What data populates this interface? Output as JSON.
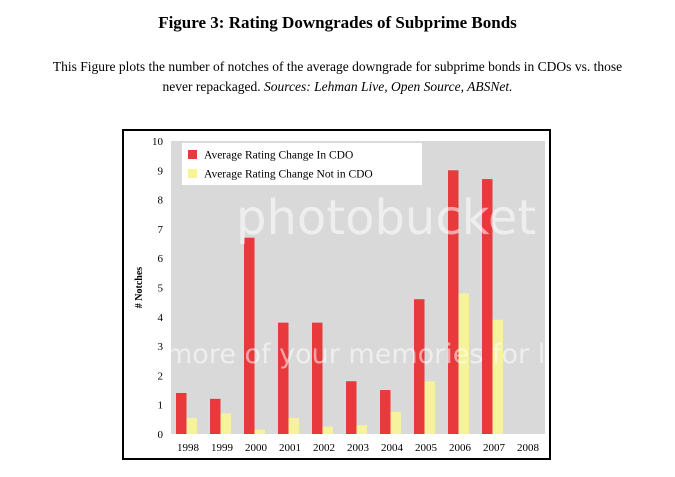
{
  "figure": {
    "title": "Figure 3: Rating Downgrades of Subprime Bonds",
    "caption_line1": "This Figure plots the number of notches of the average downgrade for subprime bonds in CDOs vs. those",
    "caption_line2_plain": "never repackaged. ",
    "caption_line2_sources": "Sources: Lehman Live, Open Source, ABSNet."
  },
  "watermark": {
    "line1": "photobucket",
    "line2": "more of your memories for less!"
  },
  "chart_data": {
    "type": "bar",
    "title": "",
    "xlabel": "",
    "ylabel": "# Notches",
    "ylim": [
      0,
      10
    ],
    "yticks": [
      "0",
      "1",
      "2",
      "3",
      "4",
      "5",
      "6",
      "7",
      "8",
      "9",
      "10"
    ],
    "grid": false,
    "legend_position": "top-left",
    "categories": [
      "1998",
      "1999",
      "2000",
      "2001",
      "2002",
      "2003",
      "2004",
      "2005",
      "2006",
      "2007",
      "2008"
    ],
    "series": [
      {
        "name": "Average Rating Change In CDO",
        "color": "#e8393c",
        "values": [
          1.4,
          1.2,
          6.7,
          3.8,
          3.8,
          1.8,
          1.5,
          4.6,
          9.0,
          8.7,
          0
        ]
      },
      {
        "name": "Average Rating Change Not in CDO",
        "color": "#f7f29e",
        "values": [
          0.55,
          0.7,
          0.15,
          0.55,
          0.25,
          0.3,
          0.75,
          1.8,
          4.8,
          3.9,
          0
        ]
      }
    ],
    "plot_background": "#d9d9d9"
  }
}
